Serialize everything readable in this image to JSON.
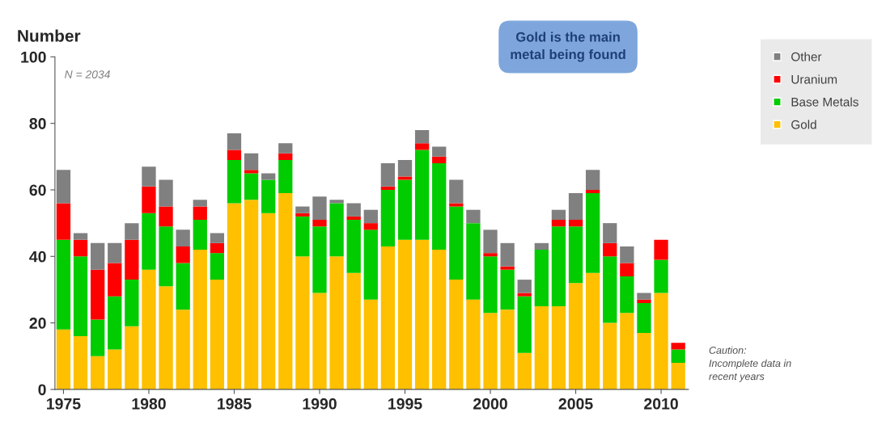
{
  "chart_data": {
    "type": "bar",
    "stacked": true,
    "ylabel": "Number",
    "x": [
      1975,
      1976,
      1977,
      1978,
      1979,
      1980,
      1981,
      1982,
      1983,
      1984,
      1985,
      1986,
      1987,
      1988,
      1989,
      1990,
      1991,
      1992,
      1993,
      1994,
      1995,
      1996,
      1997,
      1998,
      1999,
      2000,
      2001,
      2002,
      2003,
      2004,
      2005,
      2006,
      2007,
      2008,
      2009,
      2010,
      2011
    ],
    "xlim": [
      1974.5,
      2011.6
    ],
    "xticks": [
      1975,
      1980,
      1985,
      1990,
      1995,
      2000,
      2005,
      2010
    ],
    "ylim": [
      0,
      100
    ],
    "yticks": [
      0,
      20,
      40,
      60,
      80,
      100
    ],
    "grid": false,
    "legend": "right",
    "series": [
      {
        "name": "Gold",
        "color": "#ffc000",
        "values": [
          18,
          16,
          10,
          12,
          19,
          36,
          31,
          24,
          42,
          33,
          56,
          57,
          53,
          59,
          40,
          29,
          40,
          35,
          27,
          43,
          45,
          45,
          42,
          33,
          27,
          23,
          24,
          11,
          25,
          25,
          32,
          35,
          20,
          23,
          17,
          29,
          8
        ]
      },
      {
        "name": "Base Metals",
        "color": "#00cc00",
        "values": [
          27,
          24,
          11,
          16,
          14,
          17,
          18,
          14,
          9,
          8,
          13,
          8,
          10,
          10,
          12,
          20,
          16,
          16,
          21,
          17,
          18,
          27,
          26,
          22,
          23,
          17,
          12,
          17,
          17,
          24,
          17,
          24,
          20,
          11,
          9,
          10,
          4
        ]
      },
      {
        "name": "Uranium",
        "color": "#ff0000",
        "values": [
          11,
          5,
          15,
          10,
          12,
          8,
          6,
          5,
          4,
          3,
          3,
          1,
          0,
          2,
          1,
          2,
          0,
          1,
          2,
          1,
          1,
          2,
          2,
          1,
          0,
          1,
          1,
          1,
          0,
          2,
          2,
          1,
          4,
          4,
          1,
          6,
          2
        ]
      },
      {
        "name": "Other",
        "color": "#808080",
        "values": [
          10,
          2,
          8,
          6,
          5,
          6,
          8,
          5,
          2,
          3,
          5,
          5,
          2,
          3,
          2,
          7,
          1,
          4,
          4,
          7,
          5,
          4,
          3,
          7,
          4,
          7,
          7,
          4,
          2,
          3,
          8,
          6,
          6,
          5,
          2,
          0,
          0
        ]
      }
    ],
    "annotations": [
      "N = 2034",
      "Gold is the main\nmetal being found",
      "Caution:\nIncomplete data in\nrecent years"
    ]
  }
}
